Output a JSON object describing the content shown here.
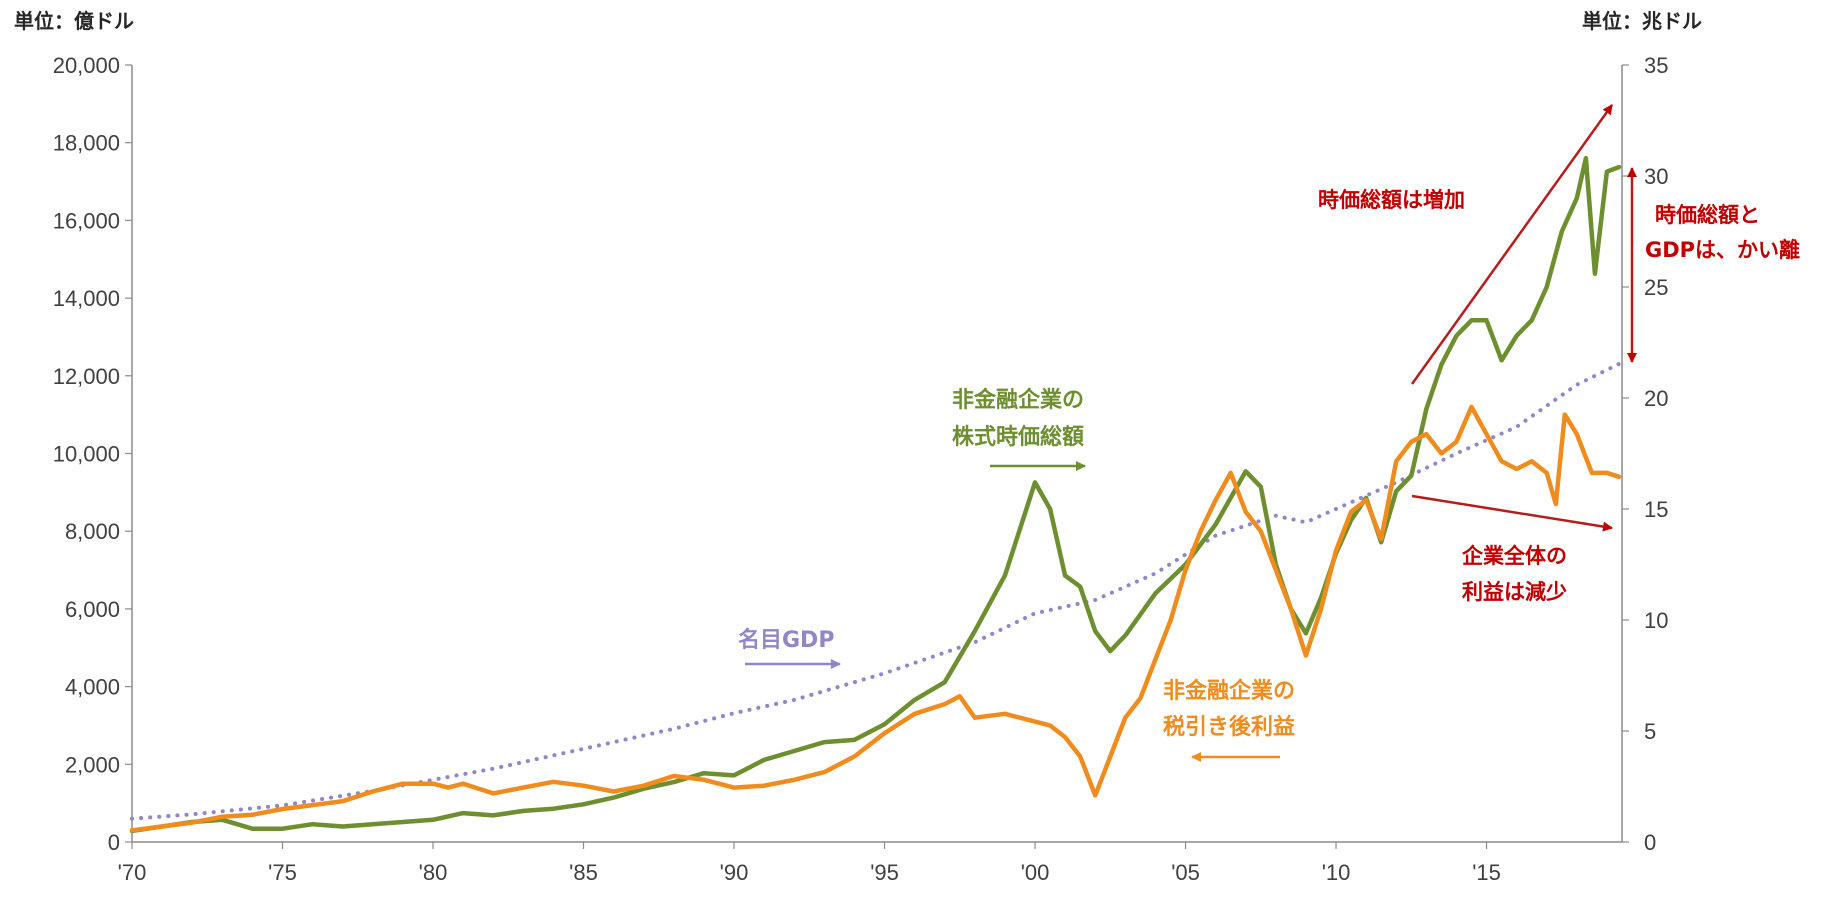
{
  "chart_data": {
    "type": "line",
    "left_unit": "単位：億ドル",
    "right_unit": "単位：兆ドル",
    "x_range": [
      1970,
      2019.5
    ],
    "x_ticks": [
      "'70",
      "'75",
      "'80",
      "'85",
      "'90",
      "'95",
      "'00",
      "'05",
      "'10",
      "'15"
    ],
    "x_tick_years": [
      1970,
      1975,
      1980,
      1985,
      1990,
      1995,
      2000,
      2005,
      2010,
      2015
    ],
    "left_axis": {
      "range": [
        0,
        20000
      ],
      "ticks": [
        "0",
        "2,000",
        "4,000",
        "6,000",
        "8,000",
        "10,000",
        "12,000",
        "14,000",
        "16,000",
        "18,000",
        "20,000"
      ]
    },
    "right_axis": {
      "range": [
        0,
        35
      ],
      "ticks": [
        "0",
        "5",
        "10",
        "15",
        "20",
        "25",
        "30",
        "35"
      ]
    },
    "grid": false,
    "series": [
      {
        "name": "非金融企業の\n株式時価総額",
        "axis": "right",
        "color": "#6e8f2f",
        "style": "solid",
        "points": [
          [
            1970,
            0.5
          ],
          [
            1971,
            0.7
          ],
          [
            1972,
            0.9
          ],
          [
            1973,
            1.0
          ],
          [
            1974,
            0.6
          ],
          [
            1975,
            0.6
          ],
          [
            1976,
            0.8
          ],
          [
            1977,
            0.7
          ],
          [
            1978,
            0.8
          ],
          [
            1979,
            0.9
          ],
          [
            1980,
            1.0
          ],
          [
            1981,
            1.3
          ],
          [
            1982,
            1.2
          ],
          [
            1983,
            1.4
          ],
          [
            1984,
            1.5
          ],
          [
            1985,
            1.7
          ],
          [
            1986,
            2.0
          ],
          [
            1987,
            2.4
          ],
          [
            1988,
            2.7
          ],
          [
            1989,
            3.1
          ],
          [
            1990,
            3.0
          ],
          [
            1991,
            3.7
          ],
          [
            1992,
            4.1
          ],
          [
            1993,
            4.5
          ],
          [
            1994,
            4.6
          ],
          [
            1995,
            5.3
          ],
          [
            1996,
            6.4
          ],
          [
            1997,
            7.2
          ],
          [
            1998,
            9.5
          ],
          [
            1999,
            12.0
          ],
          [
            2000,
            16.2
          ],
          [
            2000.5,
            15.0
          ],
          [
            2001,
            12.0
          ],
          [
            2001.5,
            11.5
          ],
          [
            2002,
            9.5
          ],
          [
            2002.5,
            8.6
          ],
          [
            2003,
            9.3
          ],
          [
            2004,
            11.2
          ],
          [
            2005,
            12.5
          ],
          [
            2006,
            14.3
          ],
          [
            2007,
            16.7
          ],
          [
            2007.5,
            16.0
          ],
          [
            2008,
            12.5
          ],
          [
            2008.5,
            10.5
          ],
          [
            2009,
            9.4
          ],
          [
            2009.5,
            11.0
          ],
          [
            2010,
            13.0
          ],
          [
            2010.5,
            14.5
          ],
          [
            2011,
            15.5
          ],
          [
            2011.5,
            13.5
          ],
          [
            2012,
            15.8
          ],
          [
            2012.5,
            16.5
          ],
          [
            2013,
            19.5
          ],
          [
            2013.5,
            21.5
          ],
          [
            2014,
            22.8
          ],
          [
            2014.5,
            23.5
          ],
          [
            2015,
            23.5
          ],
          [
            2015.5,
            21.7
          ],
          [
            2016,
            22.8
          ],
          [
            2016.5,
            23.5
          ],
          [
            2017,
            25.0
          ],
          [
            2017.5,
            27.5
          ],
          [
            2018,
            29.0
          ],
          [
            2018.3,
            30.8
          ],
          [
            2018.6,
            25.6
          ],
          [
            2019,
            30.2
          ],
          [
            2019.4,
            30.4
          ]
        ]
      },
      {
        "name": "非金融企業の\n税引き後利益",
        "axis": "left",
        "color": "#f08c1e",
        "style": "solid",
        "points": [
          [
            1970,
            300
          ],
          [
            1971,
            400
          ],
          [
            1972,
            500
          ],
          [
            1973,
            650
          ],
          [
            1974,
            700
          ],
          [
            1975,
            850
          ],
          [
            1976,
            950
          ],
          [
            1977,
            1050
          ],
          [
            1978,
            1300
          ],
          [
            1979,
            1500
          ],
          [
            1980,
            1500
          ],
          [
            1980.5,
            1400
          ],
          [
            1981,
            1500
          ],
          [
            1982,
            1250
          ],
          [
            1983,
            1400
          ],
          [
            1984,
            1550
          ],
          [
            1985,
            1450
          ],
          [
            1986,
            1300
          ],
          [
            1987,
            1450
          ],
          [
            1988,
            1700
          ],
          [
            1989,
            1600
          ],
          [
            1990,
            1400
          ],
          [
            1991,
            1450
          ],
          [
            1992,
            1600
          ],
          [
            1993,
            1800
          ],
          [
            1994,
            2200
          ],
          [
            1995,
            2800
          ],
          [
            1996,
            3300
          ],
          [
            1997,
            3550
          ],
          [
            1997.5,
            3750
          ],
          [
            1998,
            3200
          ],
          [
            1999,
            3300
          ],
          [
            2000,
            3100
          ],
          [
            2000.5,
            3000
          ],
          [
            2001,
            2700
          ],
          [
            2001.5,
            2200
          ],
          [
            2002,
            1200
          ],
          [
            2002.5,
            2200
          ],
          [
            2003,
            3200
          ],
          [
            2003.5,
            3700
          ],
          [
            2004,
            4700
          ],
          [
            2004.5,
            5700
          ],
          [
            2005,
            7000
          ],
          [
            2005.5,
            8000
          ],
          [
            2006,
            8800
          ],
          [
            2006.5,
            9500
          ],
          [
            2007,
            8500
          ],
          [
            2007.5,
            8000
          ],
          [
            2008,
            7000
          ],
          [
            2008.5,
            6000
          ],
          [
            2009,
            4800
          ],
          [
            2009.5,
            6000
          ],
          [
            2010,
            7500
          ],
          [
            2010.5,
            8500
          ],
          [
            2011,
            8800
          ],
          [
            2011.5,
            7800
          ],
          [
            2012,
            9800
          ],
          [
            2012.5,
            10300
          ],
          [
            2013,
            10500
          ],
          [
            2013.5,
            10000
          ],
          [
            2014,
            10300
          ],
          [
            2014.5,
            11200
          ],
          [
            2015,
            10500
          ],
          [
            2015.5,
            9800
          ],
          [
            2016,
            9600
          ],
          [
            2016.5,
            9800
          ],
          [
            2017,
            9500
          ],
          [
            2017.3,
            8700
          ],
          [
            2017.6,
            11000
          ],
          [
            2018,
            10500
          ],
          [
            2018.5,
            9500
          ],
          [
            2019,
            9500
          ],
          [
            2019.4,
            9400
          ]
        ]
      },
      {
        "name": "名目GDP",
        "axis": "right",
        "color": "#8f87c9",
        "style": "dotted",
        "points": [
          [
            1970,
            1.05
          ],
          [
            1972,
            1.25
          ],
          [
            1975,
            1.65
          ],
          [
            1978,
            2.3
          ],
          [
            1980,
            2.8
          ],
          [
            1982,
            3.3
          ],
          [
            1985,
            4.2
          ],
          [
            1988,
            5.1
          ],
          [
            1990,
            5.8
          ],
          [
            1992,
            6.4
          ],
          [
            1995,
            7.6
          ],
          [
            1998,
            9.0
          ],
          [
            2000,
            10.3
          ],
          [
            2002,
            10.9
          ],
          [
            2004,
            12.1
          ],
          [
            2006,
            13.8
          ],
          [
            2008,
            14.7
          ],
          [
            2009,
            14.4
          ],
          [
            2010,
            15.0
          ],
          [
            2012,
            16.2
          ],
          [
            2014,
            17.5
          ],
          [
            2016,
            18.7
          ],
          [
            2018,
            20.6
          ],
          [
            2019.5,
            21.6
          ]
        ]
      }
    ],
    "annotations": {
      "market_cap_label": [
        "非金融企業の",
        "株式時価総額"
      ],
      "profit_label": [
        "非金融企業の",
        "税引き後利益"
      ],
      "gdp_label": "名目GDP",
      "marketcap_increase": "時価総額は増加",
      "divergence": [
        "時価総額と",
        "GDPは、かい離"
      ],
      "profit_decrease": [
        "企業全体の",
        "利益は減少"
      ]
    },
    "colors": {
      "annotation_red": "#c00000",
      "axis": "#8c8c8c"
    }
  }
}
